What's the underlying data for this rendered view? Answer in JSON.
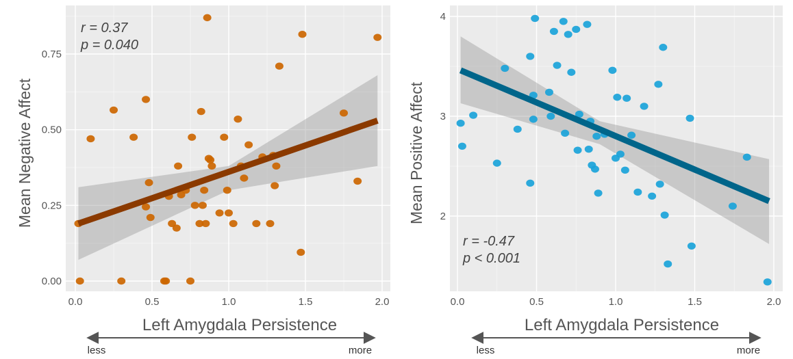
{
  "chart_data": [
    {
      "type": "scatter",
      "xlabel": "Left Amygdala Persistence",
      "ylabel": "Mean Negative Affect",
      "xlim": [
        0,
        2
      ],
      "ylim": [
        0,
        0.9
      ],
      "x_ticks": [
        0,
        0.5,
        1,
        1.5,
        2
      ],
      "x_tick_labels": [
        "0.0",
        "0.5",
        "1.0",
        "1.5",
        "2.0"
      ],
      "y_ticks": [
        0,
        0.25,
        0.5,
        0.75
      ],
      "y_tick_labels": [
        "0.00",
        "0.25",
        "0.50",
        "0.75"
      ],
      "stat_r": "r = 0.37",
      "stat_p": "p = 0.040",
      "stat_position": "top-left",
      "grid": true,
      "point_color": "#cc6600",
      "line_color": "#8b3a00",
      "regression": {
        "x": [
          0.02,
          1.97
        ],
        "y": [
          0.19,
          0.53
        ]
      },
      "ci_band": {
        "x": [
          0.02,
          1.0,
          1.97
        ],
        "lower": [
          0.07,
          0.3,
          0.38
        ],
        "upper": [
          0.31,
          0.38,
          0.68
        ]
      },
      "points": [
        {
          "x": 0.02,
          "y": 0.19
        },
        {
          "x": 0.03,
          "y": 0.0
        },
        {
          "x": 0.1,
          "y": 0.47
        },
        {
          "x": 0.25,
          "y": 0.565
        },
        {
          "x": 0.3,
          "y": 0.0
        },
        {
          "x": 0.38,
          "y": 0.475
        },
        {
          "x": 0.46,
          "y": 0.6
        },
        {
          "x": 0.46,
          "y": 0.245
        },
        {
          "x": 0.48,
          "y": 0.325
        },
        {
          "x": 0.49,
          "y": 0.21
        },
        {
          "x": 0.58,
          "y": 0.0
        },
        {
          "x": 0.59,
          "y": 0.0
        },
        {
          "x": 0.61,
          "y": 0.28
        },
        {
          "x": 0.63,
          "y": 0.19
        },
        {
          "x": 0.66,
          "y": 0.175
        },
        {
          "x": 0.67,
          "y": 0.38
        },
        {
          "x": 0.69,
          "y": 0.285
        },
        {
          "x": 0.72,
          "y": 0.3
        },
        {
          "x": 0.75,
          "y": 0.0
        },
        {
          "x": 0.76,
          "y": 0.475
        },
        {
          "x": 0.78,
          "y": 0.25
        },
        {
          "x": 0.81,
          "y": 0.19
        },
        {
          "x": 0.82,
          "y": 0.56
        },
        {
          "x": 0.83,
          "y": 0.25
        },
        {
          "x": 0.84,
          "y": 0.3
        },
        {
          "x": 0.85,
          "y": 0.19
        },
        {
          "x": 0.86,
          "y": 0.87
        },
        {
          "x": 0.87,
          "y": 0.405
        },
        {
          "x": 0.89,
          "y": 0.38
        },
        {
          "x": 0.88,
          "y": 0.4
        },
        {
          "x": 0.94,
          "y": 0.225
        },
        {
          "x": 0.97,
          "y": 0.475
        },
        {
          "x": 0.99,
          "y": 0.3
        },
        {
          "x": 1.0,
          "y": 0.225
        },
        {
          "x": 1.03,
          "y": 0.19
        },
        {
          "x": 1.06,
          "y": 0.535
        },
        {
          "x": 1.08,
          "y": 0.38
        },
        {
          "x": 1.1,
          "y": 0.34
        },
        {
          "x": 1.13,
          "y": 0.45
        },
        {
          "x": 1.18,
          "y": 0.19
        },
        {
          "x": 1.22,
          "y": 0.41
        },
        {
          "x": 1.27,
          "y": 0.19
        },
        {
          "x": 1.29,
          "y": 0.415
        },
        {
          "x": 1.3,
          "y": 0.315
        },
        {
          "x": 1.31,
          "y": 0.38
        },
        {
          "x": 1.33,
          "y": 0.71
        },
        {
          "x": 1.47,
          "y": 0.095
        },
        {
          "x": 1.48,
          "y": 0.815
        },
        {
          "x": 1.75,
          "y": 0.555
        },
        {
          "x": 1.84,
          "y": 0.33
        },
        {
          "x": 1.97,
          "y": 0.805
        }
      ]
    },
    {
      "type": "scatter",
      "xlabel": "Left Amygdala Persistence",
      "ylabel": "Mean Positive Affect",
      "xlim": [
        0,
        2
      ],
      "ylim": [
        1.3,
        4.1
      ],
      "x_ticks": [
        0,
        0.5,
        1,
        1.5,
        2
      ],
      "x_tick_labels": [
        "0.0",
        "0.5",
        "1.0",
        "1.5",
        "2.0"
      ],
      "y_ticks": [
        2,
        3,
        4
      ],
      "y_tick_labels": [
        "2",
        "3",
        "4"
      ],
      "stat_r": "r = -0.47",
      "stat_p": "p < 0.001",
      "stat_position": "bottom-left",
      "grid": true,
      "point_color": "#1aa3d9",
      "line_color": "#00658a",
      "regression": {
        "x": [
          0.02,
          1.97
        ],
        "y": [
          3.46,
          2.15
        ]
      },
      "ci_band": {
        "x": [
          0.02,
          0.9,
          1.97
        ],
        "lower": [
          3.13,
          2.72,
          1.72
        ],
        "upper": [
          3.8,
          2.95,
          2.57
        ]
      },
      "points": [
        {
          "x": 0.02,
          "y": 2.93
        },
        {
          "x": 0.03,
          "y": 2.7
        },
        {
          "x": 0.1,
          "y": 3.01
        },
        {
          "x": 0.25,
          "y": 2.53
        },
        {
          "x": 0.3,
          "y": 3.48
        },
        {
          "x": 0.38,
          "y": 2.87
        },
        {
          "x": 0.46,
          "y": 3.6
        },
        {
          "x": 0.46,
          "y": 2.33
        },
        {
          "x": 0.48,
          "y": 3.21
        },
        {
          "x": 0.48,
          "y": 2.97
        },
        {
          "x": 0.49,
          "y": 3.98
        },
        {
          "x": 0.58,
          "y": 3.24
        },
        {
          "x": 0.59,
          "y": 3.0
        },
        {
          "x": 0.61,
          "y": 3.85
        },
        {
          "x": 0.63,
          "y": 3.51
        },
        {
          "x": 0.67,
          "y": 3.95
        },
        {
          "x": 0.68,
          "y": 2.83
        },
        {
          "x": 0.7,
          "y": 3.82
        },
        {
          "x": 0.72,
          "y": 3.44
        },
        {
          "x": 0.75,
          "y": 3.87
        },
        {
          "x": 0.76,
          "y": 2.66
        },
        {
          "x": 0.77,
          "y": 3.02
        },
        {
          "x": 0.82,
          "y": 3.92
        },
        {
          "x": 0.83,
          "y": 2.67
        },
        {
          "x": 0.84,
          "y": 2.95
        },
        {
          "x": 0.85,
          "y": 2.51
        },
        {
          "x": 0.87,
          "y": 2.47
        },
        {
          "x": 0.88,
          "y": 2.8
        },
        {
          "x": 0.89,
          "y": 2.23
        },
        {
          "x": 0.93,
          "y": 2.82
        },
        {
          "x": 0.98,
          "y": 3.46
        },
        {
          "x": 1.0,
          "y": 2.58
        },
        {
          "x": 1.01,
          "y": 3.19
        },
        {
          "x": 1.03,
          "y": 2.62
        },
        {
          "x": 1.06,
          "y": 2.46
        },
        {
          "x": 1.07,
          "y": 3.18
        },
        {
          "x": 1.1,
          "y": 2.81
        },
        {
          "x": 1.14,
          "y": 2.24
        },
        {
          "x": 1.18,
          "y": 3.1
        },
        {
          "x": 1.23,
          "y": 2.2
        },
        {
          "x": 1.27,
          "y": 3.32
        },
        {
          "x": 1.28,
          "y": 2.32
        },
        {
          "x": 1.3,
          "y": 3.69
        },
        {
          "x": 1.31,
          "y": 2.01
        },
        {
          "x": 1.33,
          "y": 1.52
        },
        {
          "x": 1.47,
          "y": 2.98
        },
        {
          "x": 1.48,
          "y": 1.7
        },
        {
          "x": 1.74,
          "y": 2.1
        },
        {
          "x": 1.83,
          "y": 2.59
        },
        {
          "x": 1.96,
          "y": 1.34
        }
      ]
    }
  ],
  "panels_footer": {
    "left_less": "less",
    "left_more": "more",
    "right_less": "less",
    "right_more": "more"
  }
}
